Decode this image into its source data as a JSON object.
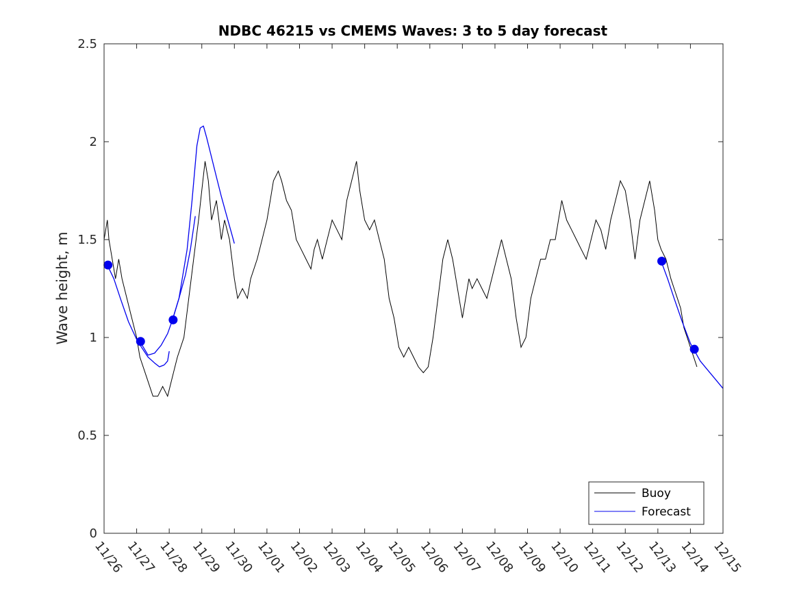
{
  "chart_data": {
    "type": "line",
    "title": "NDBC 46215 vs CMEMS Waves: 3 to 5 day forecast",
    "xlabel": "",
    "ylabel": "Wave height, m",
    "x_unit": "days since 11/26",
    "xlim": [
      0,
      19
    ],
    "ylim": [
      0,
      2.5
    ],
    "yticks": [
      0,
      0.5,
      1,
      1.5,
      2,
      2.5
    ],
    "ytick_labels": [
      "0",
      "0.5",
      "1",
      "1.5",
      "2",
      "2.5"
    ],
    "xtick_labels": [
      "11/26",
      "11/27",
      "11/28",
      "11/29",
      "11/30",
      "12/01",
      "12/02",
      "12/03",
      "12/04",
      "12/05",
      "12/06",
      "12/07",
      "12/08",
      "12/09",
      "12/10",
      "12/11",
      "12/12",
      "12/13",
      "12/14",
      "12/15"
    ],
    "legend": {
      "position": "bottom-right",
      "entries": [
        "Buoy",
        "Forecast"
      ]
    },
    "series": [
      {
        "name": "Buoy",
        "color": "#000000",
        "x": [
          0.0,
          0.1,
          0.15,
          0.25,
          0.35,
          0.45,
          0.55,
          0.7,
          0.85,
          1.0,
          1.1,
          1.3,
          1.5,
          1.65,
          1.8,
          1.95,
          2.1,
          2.25,
          2.45,
          2.6,
          2.75,
          2.9,
          3.0,
          3.1,
          3.2,
          3.3,
          3.45,
          3.6,
          3.7,
          3.85,
          4.0,
          4.1,
          4.25,
          4.4,
          4.5,
          4.7,
          4.85,
          5.0,
          5.1,
          5.2,
          5.35,
          5.45,
          5.6,
          5.75,
          5.9,
          6.05,
          6.2,
          6.35,
          6.45,
          6.55,
          6.7,
          6.85,
          7.0,
          7.15,
          7.3,
          7.45,
          7.6,
          7.75,
          7.85,
          8.0,
          8.15,
          8.3,
          8.45,
          8.6,
          8.75,
          8.9,
          9.05,
          9.2,
          9.35,
          9.5,
          9.65,
          9.8,
          9.95,
          10.1,
          10.25,
          10.4,
          10.55,
          10.7,
          10.8,
          10.9,
          11.0,
          11.1,
          11.2,
          11.3,
          11.45,
          11.6,
          11.75,
          11.9,
          12.05,
          12.2,
          12.35,
          12.5,
          12.65,
          12.8,
          12.95,
          13.1,
          13.25,
          13.4,
          13.55,
          13.7,
          13.85,
          13.95,
          14.05,
          14.2,
          14.35,
          14.5,
          14.65,
          14.8,
          14.95,
          15.1,
          15.25,
          15.4,
          15.55,
          15.7,
          15.85,
          16.0,
          16.15,
          16.3,
          16.45,
          16.6,
          16.75,
          16.9,
          17.0,
          17.1,
          17.25,
          17.4,
          17.5,
          17.6,
          17.7,
          17.8,
          17.9,
          18.0,
          18.1,
          18.2
        ],
        "y": [
          1.5,
          1.6,
          1.5,
          1.4,
          1.3,
          1.4,
          1.3,
          1.2,
          1.1,
          1.0,
          0.9,
          0.8,
          0.7,
          0.7,
          0.75,
          0.7,
          0.8,
          0.9,
          1.0,
          1.2,
          1.4,
          1.6,
          1.75,
          1.9,
          1.8,
          1.6,
          1.7,
          1.5,
          1.6,
          1.5,
          1.3,
          1.2,
          1.25,
          1.2,
          1.3,
          1.4,
          1.5,
          1.6,
          1.7,
          1.8,
          1.85,
          1.8,
          1.7,
          1.65,
          1.5,
          1.45,
          1.4,
          1.35,
          1.45,
          1.5,
          1.4,
          1.5,
          1.6,
          1.55,
          1.5,
          1.7,
          1.8,
          1.9,
          1.75,
          1.6,
          1.55,
          1.6,
          1.5,
          1.4,
          1.2,
          1.1,
          0.95,
          0.9,
          0.95,
          0.9,
          0.85,
          0.82,
          0.85,
          1.0,
          1.2,
          1.4,
          1.5,
          1.4,
          1.3,
          1.2,
          1.1,
          1.2,
          1.3,
          1.25,
          1.3,
          1.25,
          1.2,
          1.3,
          1.4,
          1.5,
          1.4,
          1.3,
          1.1,
          0.95,
          1.0,
          1.2,
          1.3,
          1.4,
          1.4,
          1.5,
          1.5,
          1.6,
          1.7,
          1.6,
          1.55,
          1.5,
          1.45,
          1.4,
          1.5,
          1.6,
          1.55,
          1.45,
          1.6,
          1.7,
          1.8,
          1.75,
          1.6,
          1.4,
          1.6,
          1.7,
          1.8,
          1.65,
          1.5,
          1.45,
          1.4,
          1.3,
          1.25,
          1.2,
          1.15,
          1.05,
          1.0,
          0.95,
          0.9,
          0.85
        ]
      },
      {
        "name": "Forecast",
        "color": "#0000ee",
        "segments": [
          {
            "x": [
              0.1,
              0.3,
              0.5,
              0.75,
              1.0,
              1.15,
              1.35,
              1.55,
              1.7,
              1.85
            ],
            "y": [
              1.37,
              1.3,
              1.2,
              1.08,
              0.99,
              0.95,
              0.9,
              0.87,
              0.85,
              0.86
            ]
          },
          {
            "x": [
              1.85,
              1.95,
              2.0
            ],
            "y": [
              0.86,
              0.88,
              0.93
            ]
          },
          {
            "x": [
              1.1,
              1.35,
              1.55,
              1.75,
              1.95,
              2.1,
              2.3,
              2.55,
              2.7,
              2.85,
              2.95,
              3.05,
              3.15,
              3.3,
              3.45,
              3.6,
              3.75,
              3.9,
              4.0
            ],
            "y": [
              0.98,
              0.91,
              0.92,
              0.96,
              1.02,
              1.09,
              1.2,
              1.45,
              1.7,
              1.98,
              2.07,
              2.08,
              2.02,
              1.92,
              1.82,
              1.72,
              1.63,
              1.54,
              1.48
            ]
          },
          {
            "x": [
              2.1,
              2.3,
              2.5,
              2.65,
              2.8
            ],
            "y": [
              1.09,
              1.2,
              1.32,
              1.45,
              1.62
            ]
          },
          {
            "x": [
              17.1,
              17.3,
              17.5,
              17.75,
              18.0,
              18.1,
              18.3,
              18.5,
              18.75,
              19.0
            ],
            "y": [
              1.39,
              1.3,
              1.2,
              1.08,
              0.97,
              0.94,
              0.88,
              0.84,
              0.79,
              0.74
            ]
          }
        ],
        "markers": {
          "x": [
            0.12,
            1.12,
            2.12,
            17.12,
            18.12
          ],
          "y": [
            1.37,
            0.98,
            1.09,
            1.39,
            0.94
          ]
        }
      }
    ]
  }
}
